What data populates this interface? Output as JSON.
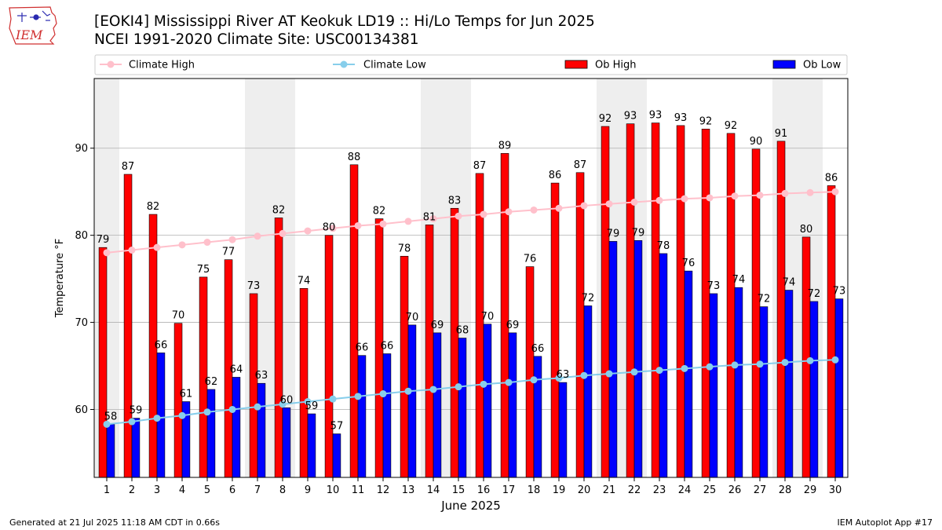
{
  "header": {
    "title_line1": "[EOKI4] Mississippi River  AT Keokuk LD19 :: Hi/Lo Temps for Jun 2025",
    "title_line2": "NCEI 1991-2020 Climate Site: USC00134381",
    "logo_text": "IEM"
  },
  "footer": {
    "generated": "Generated at 21 Jul 2025 11:18 AM CDT in 0.66s",
    "app": "IEM Autoplot App #17"
  },
  "colors": {
    "climate_high": "#ffc0cb",
    "climate_low": "#87ceeb",
    "ob_high": "#ff0000",
    "ob_low": "#0000ff",
    "weekend_shade": "#eeeeee",
    "grid": "#b0b0b0",
    "logo": "#d03030"
  },
  "chart_data": {
    "type": "bar",
    "title": "[EOKI4] Mississippi River  AT Keokuk LD19 :: Hi/Lo Temps for Jun 2025",
    "subtitle": "NCEI 1991-2020 Climate Site: USC00134381",
    "xlabel": "June 2025",
    "ylabel": "Temperature °F",
    "ylim": [
      52.2,
      98.0
    ],
    "yticks": [
      60,
      70,
      80,
      90
    ],
    "grid": "y",
    "legend_placement": "top",
    "categories": [
      "1",
      "2",
      "3",
      "4",
      "5",
      "6",
      "7",
      "8",
      "9",
      "10",
      "11",
      "12",
      "13",
      "14",
      "15",
      "16",
      "17",
      "18",
      "19",
      "20",
      "21",
      "22",
      "23",
      "24",
      "25",
      "26",
      "27",
      "28",
      "29",
      "30"
    ],
    "shaded_days": [
      1,
      7,
      8,
      14,
      15,
      21,
      22,
      28,
      29
    ],
    "series": [
      {
        "name": "Climate High",
        "kind": "line",
        "values": [
          78.0,
          78.3,
          78.6,
          78.9,
          79.2,
          79.5,
          79.9,
          80.2,
          80.5,
          80.8,
          81.1,
          81.3,
          81.6,
          81.9,
          82.2,
          82.4,
          82.7,
          82.9,
          83.1,
          83.4,
          83.6,
          83.8,
          84.0,
          84.2,
          84.3,
          84.5,
          84.6,
          84.8,
          84.9,
          85.0
        ]
      },
      {
        "name": "Climate Low",
        "kind": "line",
        "values": [
          58.3,
          58.6,
          59.0,
          59.3,
          59.7,
          60.0,
          60.3,
          60.6,
          60.9,
          61.2,
          61.5,
          61.8,
          62.1,
          62.3,
          62.6,
          62.9,
          63.1,
          63.4,
          63.6,
          63.9,
          64.1,
          64.3,
          64.5,
          64.7,
          64.9,
          65.1,
          65.2,
          65.4,
          65.6,
          65.7
        ]
      },
      {
        "name": "Ob High",
        "kind": "bar",
        "values": [
          78.6,
          87.0,
          82.4,
          69.9,
          75.2,
          77.2,
          73.3,
          82.0,
          73.9,
          80.0,
          88.1,
          81.9,
          77.6,
          81.2,
          83.1,
          87.1,
          89.4,
          76.4,
          86.0,
          87.2,
          92.5,
          92.8,
          92.9,
          92.6,
          92.2,
          91.7,
          89.9,
          90.8,
          79.8,
          85.7
        ],
        "labels": [
          79,
          87,
          82,
          70,
          75,
          77,
          73,
          82,
          74,
          80,
          88,
          82,
          78,
          81,
          83,
          87,
          89,
          76,
          86,
          87,
          92,
          93,
          93,
          93,
          92,
          92,
          90,
          91,
          80,
          86
        ]
      },
      {
        "name": "Ob Low",
        "kind": "bar",
        "values": [
          58.3,
          59.0,
          66.5,
          60.9,
          62.3,
          63.7,
          63.0,
          60.2,
          59.5,
          57.2,
          66.2,
          66.4,
          69.7,
          68.8,
          68.2,
          69.8,
          68.8,
          66.1,
          63.1,
          71.9,
          79.3,
          79.4,
          77.9,
          75.9,
          73.3,
          74.0,
          71.8,
          73.7,
          72.4,
          72.7
        ],
        "labels": [
          58,
          59,
          66,
          61,
          62,
          64,
          63,
          60,
          59,
          57,
          66,
          66,
          70,
          69,
          68,
          70,
          69,
          66,
          63,
          72,
          79,
          79,
          78,
          76,
          73,
          74,
          72,
          74,
          72,
          73
        ]
      }
    ]
  }
}
